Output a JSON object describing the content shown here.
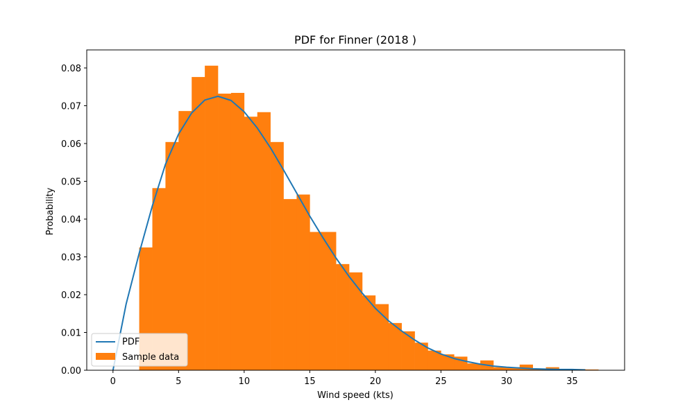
{
  "chart_data": {
    "type": "bar",
    "title": "PDF for Finner (2018 )",
    "xlabel": "Wind speed (kts)",
    "ylabel": "Probability",
    "xlim": [
      -2,
      39
    ],
    "ylim": [
      0,
      0.08
    ],
    "x_ticks": [
      0,
      5,
      10,
      15,
      20,
      25,
      30,
      35
    ],
    "y_ticks": [
      0.0,
      0.01,
      0.02,
      0.03,
      0.04,
      0.05,
      0.06,
      0.07,
      0.08
    ],
    "y_tick_labels": [
      "0.00",
      "0.01",
      "0.02",
      "0.03",
      "0.04",
      "0.05",
      "0.06",
      "0.07",
      "0.08"
    ],
    "histogram": {
      "name": "Sample data",
      "color": "#ff7f0e",
      "bin_width": 1,
      "bins": [
        {
          "start": 2,
          "value": 0.0325
        },
        {
          "start": 3,
          "value": 0.0482
        },
        {
          "start": 4,
          "value": 0.0604
        },
        {
          "start": 5,
          "value": 0.0686
        },
        {
          "start": 6,
          "value": 0.0776
        },
        {
          "start": 7,
          "value": 0.0806
        },
        {
          "start": 8,
          "value": 0.0732
        },
        {
          "start": 9,
          "value": 0.0734
        },
        {
          "start": 10,
          "value": 0.0671
        },
        {
          "start": 11,
          "value": 0.0683
        },
        {
          "start": 12,
          "value": 0.0604
        },
        {
          "start": 13,
          "value": 0.0453
        },
        {
          "start": 14,
          "value": 0.0465
        },
        {
          "start": 15,
          "value": 0.0366
        },
        {
          "start": 16,
          "value": 0.0366
        },
        {
          "start": 17,
          "value": 0.0281
        },
        {
          "start": 18,
          "value": 0.0259
        },
        {
          "start": 19,
          "value": 0.0198
        },
        {
          "start": 20,
          "value": 0.0175
        },
        {
          "start": 21,
          "value": 0.0125
        },
        {
          "start": 22,
          "value": 0.0103
        },
        {
          "start": 23,
          "value": 0.0073
        },
        {
          "start": 24,
          "value": 0.0052
        },
        {
          "start": 25,
          "value": 0.0042
        },
        {
          "start": 26,
          "value": 0.0036
        },
        {
          "start": 27,
          "value": 0.0018
        },
        {
          "start": 28,
          "value": 0.0026
        },
        {
          "start": 29,
          "value": 0.0008
        },
        {
          "start": 30,
          "value": 0.0008
        },
        {
          "start": 31,
          "value": 0.0015
        },
        {
          "start": 32,
          "value": 0.0004
        },
        {
          "start": 33,
          "value": 0.0008
        },
        {
          "start": 34,
          "value": 0.0003
        },
        {
          "start": 35,
          "value": 0.0003
        },
        {
          "start": 36,
          "value": 0.0002
        }
      ]
    },
    "pdf_line": {
      "name": "PDF",
      "color": "#1f77b4",
      "x": [
        0,
        1,
        2,
        3,
        4,
        5,
        6,
        7,
        8,
        9,
        10,
        11,
        12,
        13,
        14,
        15,
        16,
        17,
        18,
        19,
        20,
        21,
        22,
        23,
        24,
        25,
        26,
        27,
        28,
        29,
        30,
        31,
        32,
        33,
        34,
        35,
        36
      ],
      "y": [
        0.0,
        0.0175,
        0.031,
        0.0435,
        0.0545,
        0.0625,
        0.0681,
        0.0715,
        0.0725,
        0.0714,
        0.0684,
        0.0641,
        0.0589,
        0.053,
        0.0469,
        0.0408,
        0.0351,
        0.0297,
        0.0248,
        0.0204,
        0.0164,
        0.0131,
        0.0104,
        0.008,
        0.0059,
        0.0043,
        0.0031,
        0.0023,
        0.0016,
        0.0011,
        0.0008,
        0.0006,
        0.0004,
        0.0003,
        0.0002,
        0.0002,
        0.0001
      ]
    },
    "legend": {
      "position": "lower-left",
      "entries": [
        "PDF",
        "Sample data"
      ]
    }
  },
  "colors": {
    "axes": "#000000",
    "background": "#ffffff"
  }
}
